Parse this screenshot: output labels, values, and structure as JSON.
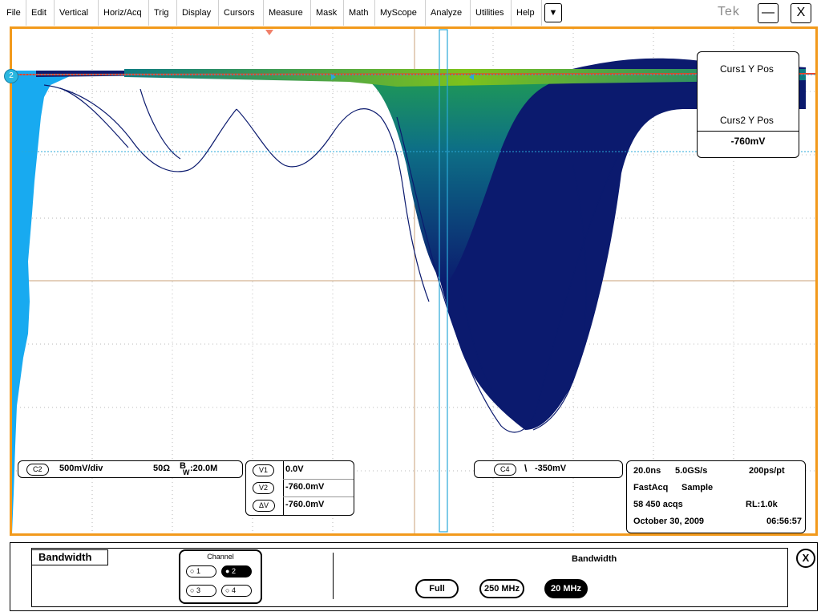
{
  "menubar": {
    "items": [
      "File",
      "Edit",
      "Vertical",
      "Horiz/Acq",
      "Trig",
      "Display",
      "Cursors",
      "Measure",
      "Mask",
      "Math",
      "MyScope",
      "Analyze",
      "Utilities",
      "Help"
    ],
    "dropdown_glyph": "▼",
    "brand": "Tek",
    "minimize_glyph": "—",
    "close_glyph": "X"
  },
  "graticule": {
    "channel_marker": "2",
    "trace_colors": {
      "persistence_dark": "#0b1a6e",
      "persistence_mid": "#0d7c82",
      "persistence_hot": "#7ec21b",
      "cursor": "#2aa8d8",
      "reference": "#e8432b",
      "histogram": "#18aaf0"
    }
  },
  "cursor_box": {
    "label1": "Curs1 Y Pos",
    "label2": "Curs2 Y Pos",
    "value": "-760mV"
  },
  "channel_readout": {
    "badge": "C2",
    "scale": "500mV/div",
    "impedance": "50Ω",
    "bw_prefix": "B",
    "bw_sub": "W",
    "bandwidth": ":20.0M"
  },
  "cursor_readout": {
    "rows": [
      {
        "label": "V1",
        "value": "0.0V"
      },
      {
        "label": "V2",
        "value": "-760.0mV"
      },
      {
        "label": "ΔV",
        "value": "-760.0mV"
      }
    ]
  },
  "trigger_readout": {
    "badge": "C4",
    "slope_glyph": "\\",
    "level": "-350mV"
  },
  "timebase_readout": {
    "horiz_scale": "20.0ns",
    "sample_rate": "5.0GS/s",
    "resolution": "200ps/pt",
    "acq_mode": "FastAcq",
    "sampling": "Sample",
    "acqs": "58 450 acqs",
    "record_length": "RL:1.0k",
    "date": "October 30, 2009",
    "time": "06:56:57"
  },
  "bottom_panel": {
    "title": "Bandwidth",
    "channel_group_label": "Channel",
    "channels": [
      "1",
      "2",
      "3",
      "4"
    ],
    "selected_channel": "2",
    "bandwidth_header": "Bandwidth",
    "bandwidth_options": [
      "Full",
      "250 MHz",
      "20 MHz"
    ],
    "selected_bandwidth": "20 MHz",
    "close_glyph": "X"
  }
}
